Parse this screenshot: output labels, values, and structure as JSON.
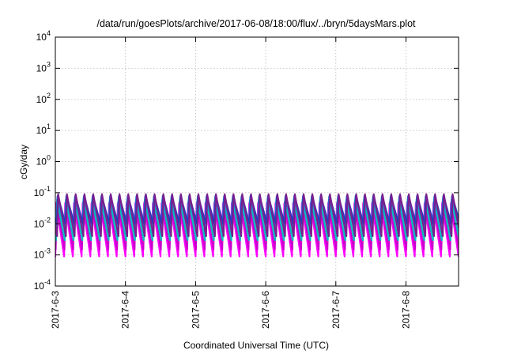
{
  "chart_data": {
    "type": "line",
    "title": "/data/run/goesPlots/archive/2017-06-08/18:00/flux/../bryn/5daysMars.plot",
    "xlabel": "Coordinated Universal Time (UTC)",
    "ylabel": "cGy/day",
    "y_scale": "log",
    "ylim": [
      0.0001,
      10000
    ],
    "y_ticks": [
      {
        "base": "10",
        "exp": "-4",
        "value": 0.0001
      },
      {
        "base": "10",
        "exp": "-3",
        "value": 0.001
      },
      {
        "base": "10",
        "exp": "-2",
        "value": 0.01
      },
      {
        "base": "10",
        "exp": "-1",
        "value": 0.1
      },
      {
        "base": "10",
        "exp": "0",
        "value": 1
      },
      {
        "base": "10",
        "exp": "1",
        "value": 10
      },
      {
        "base": "10",
        "exp": "2",
        "value": 100
      },
      {
        "base": "10",
        "exp": "3",
        "value": 1000
      },
      {
        "base": "10",
        "exp": "4",
        "value": 10000
      }
    ],
    "xlim": [
      "2017-06-03T00:00",
      "2017-06-08T18:00"
    ],
    "x_ticks": [
      "2017-6-3",
      "2017-6-4",
      "2017-6-5",
      "2017-6-6",
      "2017-6-7",
      "2017-6-8"
    ],
    "grid": true,
    "legend": "none",
    "series": [
      {
        "color": "#ff00ff",
        "period_hours": 3,
        "peak": 0.045,
        "trough": 0.0009
      },
      {
        "color": "#cc00cc",
        "period_hours": 3,
        "peak": 0.05,
        "trough": 0.0015
      },
      {
        "color": "#00c0c0",
        "period_hours": 3,
        "peak": 0.06,
        "trough": 0.003
      },
      {
        "color": "#2a7fd4",
        "period_hours": 3,
        "peak": 0.075,
        "trough": 0.006
      },
      {
        "color": "#1f3fc0",
        "period_hours": 3,
        "peak": 0.08,
        "trough": 0.01
      },
      {
        "color": "#7a1f8f",
        "period_hours": 3,
        "peak": 0.09,
        "trough": 0.004
      }
    ]
  }
}
